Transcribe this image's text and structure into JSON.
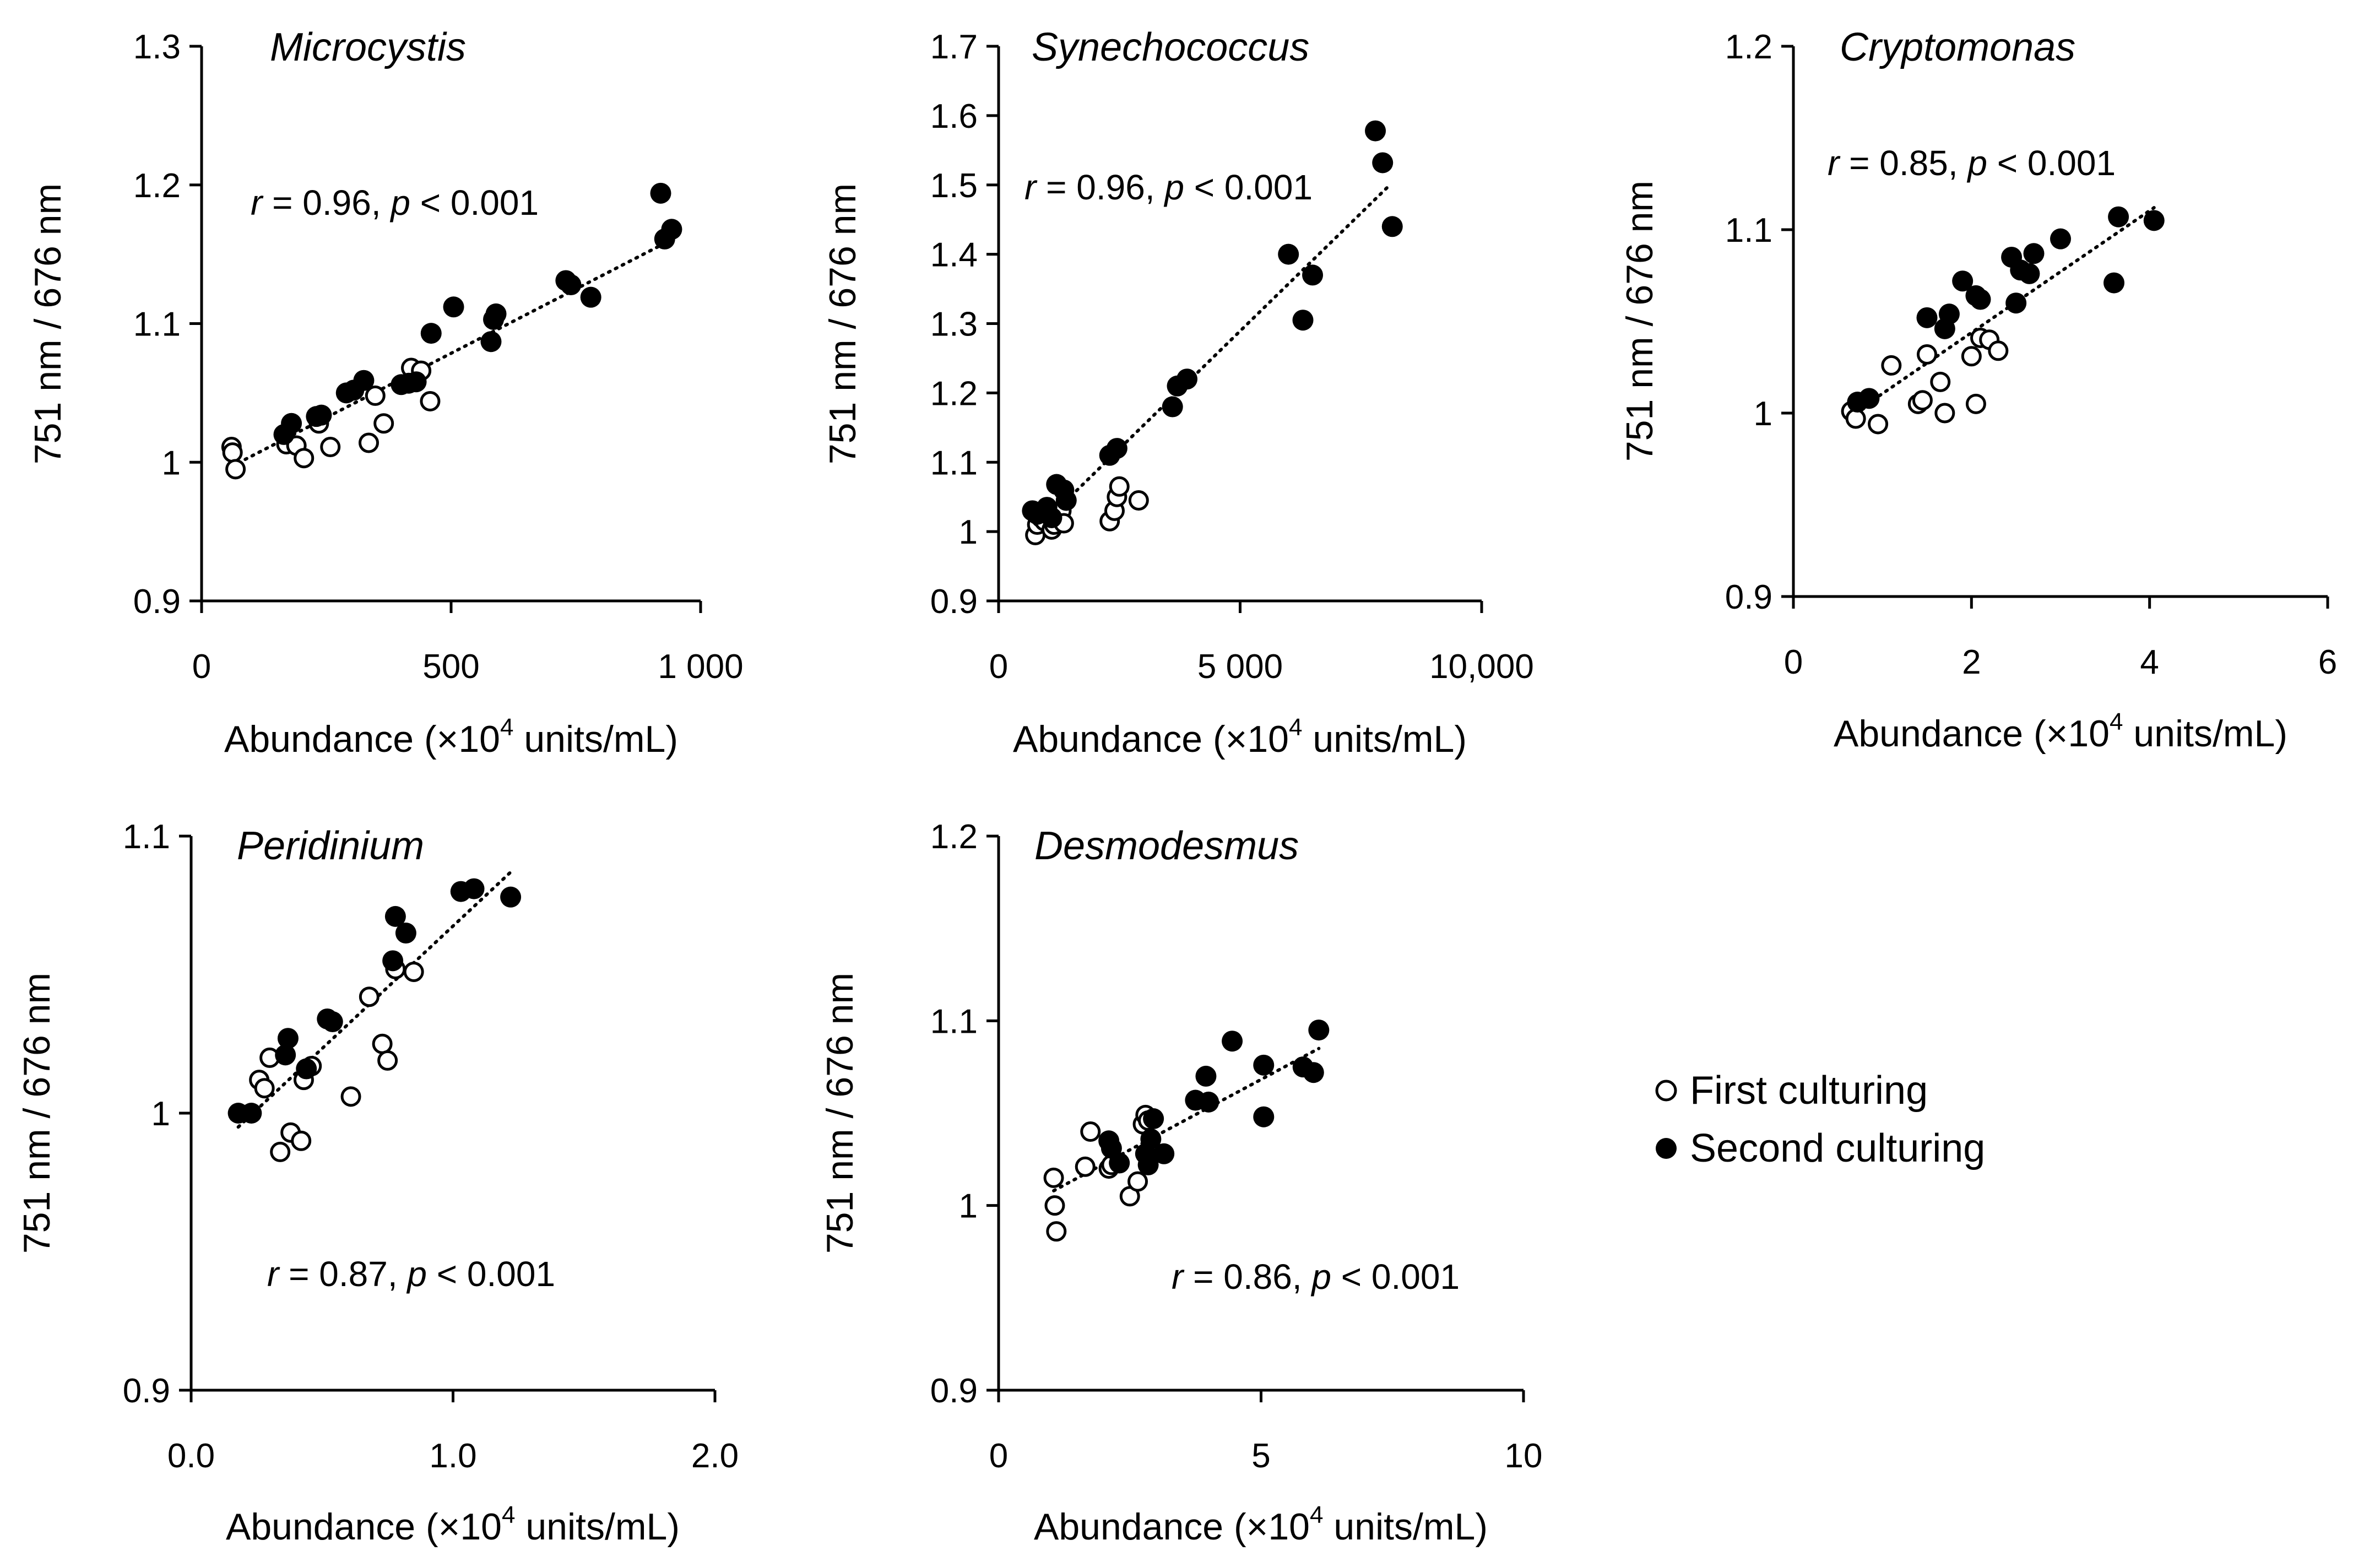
{
  "figure_layout_note": "",
  "legend": {
    "first_label": "First culturing",
    "second_label": "Second culturing"
  },
  "chart_data": [
    {
      "type": "scatter",
      "id": "microcystis",
      "title": "Microcystis",
      "stat": {
        "r_prefix": "r",
        "r_value": " = 0.96, ",
        "p_prefix": "p",
        "p_value": " < 0.001"
      },
      "xlabel": {
        "pre": "Abundance (×10",
        "sup": "4",
        "post": " units/mL)"
      },
      "ylabel": "751 nm / 676 nm",
      "xlim": [
        0,
        1000
      ],
      "ylim": [
        0.9,
        1.3
      ],
      "xticks": [
        0,
        500,
        1000
      ],
      "xtick_labels": [
        "0",
        "500",
        "1 000"
      ],
      "yticks": [
        0.9,
        1.0,
        1.1,
        1.2,
        1.3
      ],
      "ytick_labels": [
        "0.9",
        "1",
        "1.1",
        "1.2",
        "1.3"
      ],
      "trend": [
        [
          60,
          0.997
        ],
        [
          950,
          1.162
        ]
      ],
      "series": [
        {
          "name": "First culturing",
          "marker": "open",
          "points": [
            [
              60,
              1.011
            ],
            [
              62,
              1.007
            ],
            [
              68,
              0.995
            ],
            [
              170,
              1.013
            ],
            [
              190,
              1.012
            ],
            [
              205,
              1.003
            ],
            [
              235,
              1.028
            ],
            [
              258,
              1.011
            ],
            [
              335,
              1.014
            ],
            [
              348,
              1.048
            ],
            [
              365,
              1.028
            ],
            [
              420,
              1.068
            ],
            [
              440,
              1.066
            ],
            [
              458,
              1.044
            ]
          ]
        },
        {
          "name": "Second culturing",
          "marker": "filled",
          "points": [
            [
              165,
              1.02
            ],
            [
              180,
              1.028
            ],
            [
              230,
              1.033
            ],
            [
              240,
              1.034
            ],
            [
              290,
              1.05
            ],
            [
              305,
              1.052
            ],
            [
              325,
              1.059
            ],
            [
              400,
              1.056
            ],
            [
              415,
              1.057
            ],
            [
              430,
              1.058
            ],
            [
              460,
              1.093
            ],
            [
              505,
              1.112
            ],
            [
              580,
              1.087
            ],
            [
              585,
              1.103
            ],
            [
              590,
              1.107
            ],
            [
              730,
              1.131
            ],
            [
              740,
              1.128
            ],
            [
              780,
              1.119
            ],
            [
              920,
              1.194
            ],
            [
              928,
              1.161
            ],
            [
              942,
              1.168
            ]
          ]
        }
      ]
    },
    {
      "type": "scatter",
      "id": "synechococcus",
      "title": "Synechococcus",
      "stat": {
        "r_prefix": "r",
        "r_value": " = 0.96, ",
        "p_prefix": "p",
        "p_value": " < 0.001"
      },
      "xlabel": {
        "pre": "Abundance (×10",
        "sup": "4",
        "post": " units/mL)"
      },
      "ylabel": "751 nm / 676 nm",
      "xlim": [
        0,
        10000
      ],
      "ylim": [
        0.9,
        1.7
      ],
      "xticks": [
        0,
        5000,
        10000
      ],
      "xtick_labels": [
        "0",
        "5 000",
        "10,000"
      ],
      "yticks": [
        0.9,
        1.0,
        1.1,
        1.2,
        1.3,
        1.4,
        1.5,
        1.6,
        1.7
      ],
      "ytick_labels": [
        "0.9",
        "1",
        "1.1",
        "1.2",
        "1.3",
        "1.4",
        "1.5",
        "1.6",
        "1.7"
      ],
      "trend": [
        [
          700,
          0.997
        ],
        [
          8100,
          1.5
        ]
      ],
      "series": [
        {
          "name": "First culturing",
          "marker": "open",
          "points": [
            [
              760,
              0.995
            ],
            [
              800,
              1.01
            ],
            [
              880,
              1.02
            ],
            [
              950,
              1.015
            ],
            [
              1100,
              1.003
            ],
            [
              1150,
              1.01
            ],
            [
              1300,
              1.03
            ],
            [
              1350,
              1.012
            ],
            [
              2300,
              1.015
            ],
            [
              2400,
              1.03
            ],
            [
              2450,
              1.05
            ],
            [
              2500,
              1.065
            ],
            [
              2900,
              1.045
            ]
          ]
        },
        {
          "name": "Second culturing",
          "marker": "filled",
          "points": [
            [
              700,
              1.03
            ],
            [
              800,
              1.025
            ],
            [
              1000,
              1.035
            ],
            [
              1100,
              1.02
            ],
            [
              1200,
              1.068
            ],
            [
              1350,
              1.06
            ],
            [
              1400,
              1.045
            ],
            [
              2300,
              1.11
            ],
            [
              2450,
              1.12
            ],
            [
              3600,
              1.18
            ],
            [
              3700,
              1.21
            ],
            [
              3900,
              1.22
            ],
            [
              6000,
              1.4
            ],
            [
              6300,
              1.305
            ],
            [
              6500,
              1.37
            ],
            [
              7800,
              1.578
            ],
            [
              7950,
              1.532
            ],
            [
              8150,
              1.44
            ]
          ]
        }
      ]
    },
    {
      "type": "scatter",
      "id": "cryptomonas",
      "title": "Cryptomonas",
      "stat": {
        "r_prefix": "r",
        "r_value": " = 0.85, ",
        "p_prefix": "p",
        "p_value": " < 0.001"
      },
      "xlabel": {
        "pre": "Abundance (×10",
        "sup": "4",
        "post": " units/mL)"
      },
      "ylabel": "751 nm / 676 nm",
      "xlim": [
        0,
        6
      ],
      "ylim": [
        0.9,
        1.2
      ],
      "xticks": [
        0,
        2,
        4,
        6
      ],
      "xtick_labels": [
        "0",
        "2",
        "4",
        "6"
      ],
      "yticks": [
        0.9,
        1.0,
        1.1,
        1.2
      ],
      "ytick_labels": [
        "0.9",
        "1",
        "1.1",
        "1.2"
      ],
      "trend": [
        [
          0.68,
          1.0
        ],
        [
          4.05,
          1.112
        ]
      ],
      "series": [
        {
          "name": "First culturing",
          "marker": "open",
          "points": [
            [
              0.65,
              1.001
            ],
            [
              0.7,
              0.997
            ],
            [
              0.95,
              0.994
            ],
            [
              1.1,
              1.026
            ],
            [
              1.4,
              1.005
            ],
            [
              1.45,
              1.007
            ],
            [
              1.5,
              1.032
            ],
            [
              1.65,
              1.017
            ],
            [
              1.7,
              1.0
            ],
            [
              2.0,
              1.031
            ],
            [
              2.05,
              1.005
            ],
            [
              2.1,
              1.041
            ],
            [
              2.2,
              1.04
            ],
            [
              2.3,
              1.034
            ]
          ]
        },
        {
          "name": "Second culturing",
          "marker": "filled",
          "points": [
            [
              0.72,
              1.006
            ],
            [
              0.85,
              1.008
            ],
            [
              1.5,
              1.052
            ],
            [
              1.7,
              1.046
            ],
            [
              1.75,
              1.054
            ],
            [
              1.9,
              1.072
            ],
            [
              2.05,
              1.064
            ],
            [
              2.1,
              1.062
            ],
            [
              2.45,
              1.085
            ],
            [
              2.5,
              1.06
            ],
            [
              2.55,
              1.078
            ],
            [
              2.65,
              1.076
            ],
            [
              2.7,
              1.087
            ],
            [
              3.0,
              1.095
            ],
            [
              3.6,
              1.071
            ],
            [
              3.65,
              1.107
            ],
            [
              4.05,
              1.105
            ]
          ]
        }
      ]
    },
    {
      "type": "scatter",
      "id": "peridinium",
      "title": "Peridinium",
      "stat": {
        "r_prefix": "r",
        "r_value": " = 0.87, ",
        "p_prefix": "p",
        "p_value": " < 0.001"
      },
      "xlabel": {
        "pre": "Abundance (×10",
        "sup": "4",
        "post": " units/mL)"
      },
      "ylabel": "751 nm / 676 nm",
      "xlim": [
        0,
        2.0
      ],
      "ylim": [
        0.9,
        1.1
      ],
      "xticks": [
        0,
        1.0,
        2.0
      ],
      "xtick_labels": [
        "0.0",
        "1.0",
        "2.0"
      ],
      "yticks": [
        0.9,
        1.0,
        1.1
      ],
      "ytick_labels": [
        "0.9",
        "1",
        "1.1"
      ],
      "trend": [
        [
          0.18,
          0.995
        ],
        [
          1.22,
          1.087
        ]
      ],
      "series": [
        {
          "name": "First culturing",
          "marker": "open",
          "points": [
            [
              0.26,
              1.012
            ],
            [
              0.28,
              1.009
            ],
            [
              0.3,
              1.02
            ],
            [
              0.34,
              0.986
            ],
            [
              0.38,
              0.993
            ],
            [
              0.42,
              0.99
            ],
            [
              0.43,
              1.012
            ],
            [
              0.46,
              1.017
            ],
            [
              0.61,
              1.006
            ],
            [
              0.68,
              1.042
            ],
            [
              0.73,
              1.025
            ],
            [
              0.75,
              1.019
            ],
            [
              0.78,
              1.052
            ],
            [
              0.85,
              1.051
            ]
          ]
        },
        {
          "name": "Second culturing",
          "marker": "filled",
          "points": [
            [
              0.18,
              1.0
            ],
            [
              0.23,
              1.0
            ],
            [
              0.36,
              1.021
            ],
            [
              0.37,
              1.027
            ],
            [
              0.44,
              1.016
            ],
            [
              0.52,
              1.034
            ],
            [
              0.54,
              1.033
            ],
            [
              0.77,
              1.055
            ],
            [
              0.78,
              1.071
            ],
            [
              0.82,
              1.065
            ],
            [
              1.03,
              1.08
            ],
            [
              1.08,
              1.081
            ],
            [
              1.22,
              1.078
            ]
          ]
        }
      ]
    },
    {
      "type": "scatter",
      "id": "desmodesmus",
      "title": "Desmodesmus",
      "stat": {
        "r_prefix": "r",
        "r_value": " = 0.86, ",
        "p_prefix": "p",
        "p_value": " < 0.001"
      },
      "xlabel": {
        "pre": "Abundance (×10",
        "sup": "4",
        "post": " units/mL)"
      },
      "ylabel": "751 nm / 676 nm",
      "xlim": [
        0,
        10
      ],
      "ylim": [
        0.9,
        1.2
      ],
      "xticks": [
        0,
        5,
        10
      ],
      "xtick_labels": [
        "0",
        "5",
        "10"
      ],
      "yticks": [
        0.9,
        1.0,
        1.1,
        1.2
      ],
      "ytick_labels": [
        "0.9",
        "1",
        "1.1",
        "1.2"
      ],
      "trend": [
        [
          1.05,
          1.008
        ],
        [
          6.1,
          1.085
        ]
      ],
      "series": [
        {
          "name": "First culturing",
          "marker": "open",
          "points": [
            [
              1.05,
              1.015
            ],
            [
              1.07,
              1.0
            ],
            [
              1.1,
              0.986
            ],
            [
              1.65,
              1.021
            ],
            [
              1.75,
              1.04
            ],
            [
              2.1,
              1.02
            ],
            [
              2.15,
              1.022
            ],
            [
              2.5,
              1.005
            ],
            [
              2.65,
              1.013
            ],
            [
              2.75,
              1.044
            ],
            [
              2.8,
              1.049
            ],
            [
              2.85,
              1.046
            ],
            [
              2.9,
              1.031
            ]
          ]
        },
        {
          "name": "Second culturing",
          "marker": "filled",
          "points": [
            [
              2.1,
              1.035
            ],
            [
              2.15,
              1.031
            ],
            [
              2.3,
              1.023
            ],
            [
              2.8,
              1.028
            ],
            [
              2.85,
              1.022
            ],
            [
              2.9,
              1.036
            ],
            [
              2.95,
              1.047
            ],
            [
              3.15,
              1.028
            ],
            [
              3.75,
              1.057
            ],
            [
              3.95,
              1.07
            ],
            [
              4.0,
              1.056
            ],
            [
              4.45,
              1.089
            ],
            [
              5.05,
              1.076
            ],
            [
              5.05,
              1.048
            ],
            [
              5.8,
              1.075
            ],
            [
              6.0,
              1.072
            ],
            [
              6.1,
              1.095
            ]
          ]
        }
      ]
    }
  ]
}
